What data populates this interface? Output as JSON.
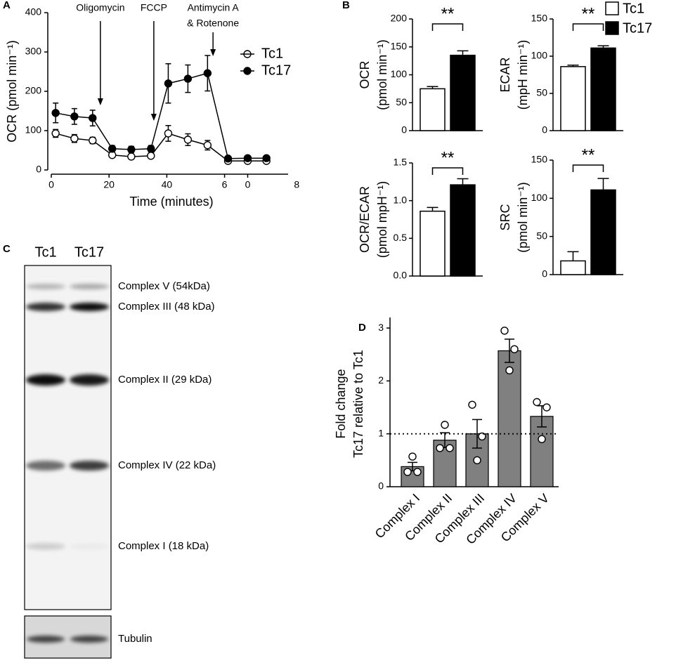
{
  "chart_data": [
    {
      "type": "line",
      "panel_label": "A",
      "xlabel": "Time (minutes)",
      "ylabel": "OCR (pmol min⁻¹)",
      "x": [
        1.5,
        8,
        14.3,
        21.1,
        27.7,
        34.5,
        40.5,
        47.3,
        54.1,
        61.2,
        68,
        74.5
      ],
      "series": [
        {
          "name": "Tc1",
          "color": "#ffffff",
          "values": [
            93,
            80,
            75,
            38,
            34,
            36,
            93,
            77,
            63,
            23,
            23,
            23
          ],
          "errors": [
            10,
            10,
            8,
            5,
            4,
            4,
            20,
            15,
            12,
            3,
            3,
            3
          ]
        },
        {
          "name": "Tc17",
          "color": "#000000",
          "values": [
            145,
            136,
            132,
            54,
            52,
            54,
            220,
            232,
            246,
            29,
            30,
            30
          ],
          "errors": [
            25,
            20,
            20,
            8,
            8,
            8,
            50,
            35,
            45,
            5,
            5,
            5
          ]
        }
      ],
      "xlim": [
        0,
        82
      ],
      "ylim": [
        0,
        400
      ],
      "xticks": [
        0,
        20,
        40,
        {
          "value": 60,
          "label": "6"
        },
        {
          "value": 68,
          "label": "0"
        },
        {
          "value": 85,
          "label": "8"
        }
      ],
      "yticks": [
        0,
        100,
        200,
        300,
        400
      ],
      "annotations": [
        {
          "text": [
            "Oligomycin"
          ],
          "x": 17
        },
        {
          "text": [
            "FCCP"
          ],
          "x": 35.5
        },
        {
          "text": [
            "Antimycin A",
            "& Rotenone"
          ],
          "x": 56
        }
      ],
      "legend": "upper right"
    },
    {
      "type": "bar_pair",
      "panel_label": "B",
      "series": [
        {
          "name": "Tc1",
          "color": "#ffffff"
        },
        {
          "name": "Tc17",
          "color": "#000000"
        }
      ],
      "subplots": [
        {
          "ylabel": [
            "OCR",
            "(pmol min⁻¹)"
          ],
          "values": [
            75,
            135
          ],
          "errors": [
            4,
            8
          ],
          "ylim": [
            0,
            200
          ],
          "yticks": [
            0,
            50,
            100,
            150,
            200
          ],
          "significance": "**"
        },
        {
          "ylabel": [
            "ECAR",
            "(mpH min⁻¹)"
          ],
          "values": [
            86,
            111
          ],
          "errors": [
            2,
            3
          ],
          "ylim": [
            0,
            150
          ],
          "yticks": [
            0,
            50,
            100,
            150
          ],
          "significance": "**"
        },
        {
          "ylabel": [
            "OCR/ECAR",
            "(pmol mpH⁻¹)"
          ],
          "values": [
            0.86,
            1.21
          ],
          "errors": [
            0.05,
            0.08
          ],
          "ylim": [
            0,
            1.5
          ],
          "yticks": [
            {
              "value": 0,
              "label": "0.0"
            },
            0.5,
            {
              "value": 1,
              "label": "1.0"
            },
            1.5
          ],
          "significance": "**"
        },
        {
          "ylabel": [
            "SRC",
            "(pmol min⁻¹)"
          ],
          "values": [
            18,
            111
          ],
          "errors": [
            12,
            15
          ],
          "ylim": [
            0,
            150
          ],
          "yticks": [
            0,
            50,
            100,
            150
          ],
          "significance": "**"
        }
      ]
    },
    {
      "type": "bar_dots",
      "panel_label": "D",
      "ylabel": [
        "Fold change",
        "Tc17 relative to Tc1"
      ],
      "categories": [
        "Complex I",
        "Complex II",
        "Complex III",
        "Complex IV",
        "Complex V"
      ],
      "values": [
        0.38,
        0.88,
        1.0,
        2.57,
        1.33
      ],
      "errors": [
        0.08,
        0.14,
        0.27,
        0.22,
        0.2
      ],
      "points": [
        [
          0.28,
          0.28,
          0.57
        ],
        [
          0.73,
          0.73,
          1.17
        ],
        [
          1.55,
          0.95,
          0.5
        ],
        [
          2.95,
          2.6,
          2.2
        ],
        [
          1.6,
          1.5,
          0.9
        ]
      ],
      "color": "#808080",
      "ylim": [
        0,
        3.2
      ],
      "yticks": [
        0,
        1,
        2,
        3
      ],
      "reference_line": 1
    }
  ],
  "blot": {
    "panel_label": "C",
    "lanes": [
      "Tc1",
      "Tc17"
    ],
    "bands": [
      "Complex V (54kDa)",
      "Complex III (48 kDa)",
      "Complex II (29 kDa)",
      "Complex IV (22 kDa)",
      "Complex I (18 kDa)"
    ],
    "loading_control": "Tubulin"
  }
}
